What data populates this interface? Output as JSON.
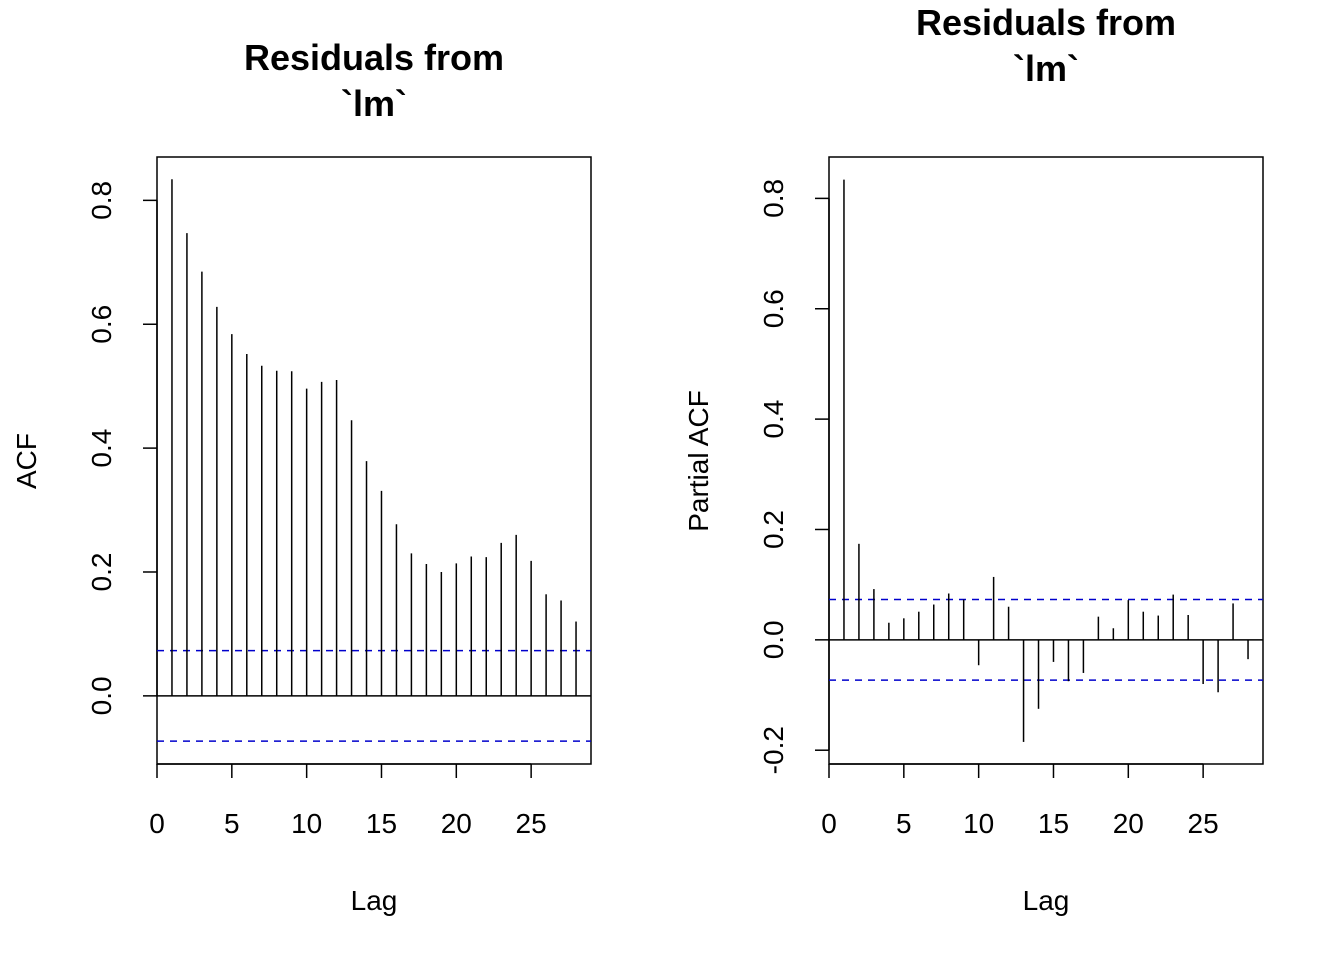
{
  "chart_data": [
    {
      "type": "bar",
      "title_lines": [
        "Residuals from",
        "`lm`"
      ],
      "xlabel": "Lag",
      "ylabel": "ACF",
      "xlim": [
        0,
        29
      ],
      "ylim": [
        -0.11,
        0.87
      ],
      "xticks": [
        "0",
        "5",
        "10",
        "15",
        "20",
        "25"
      ],
      "yticks": [
        "0.0",
        "0.2",
        "0.4",
        "0.6",
        "0.8"
      ],
      "confidence_band": 0.073,
      "band_color": "#0000cc",
      "bar_color": "#000000",
      "lags": [
        1,
        2,
        3,
        4,
        5,
        6,
        7,
        8,
        9,
        10,
        11,
        12,
        13,
        14,
        15,
        16,
        17,
        18,
        19,
        20,
        21,
        22,
        23,
        24,
        25,
        26,
        27,
        28
      ],
      "values": [
        0.834,
        0.747,
        0.685,
        0.628,
        0.584,
        0.552,
        0.533,
        0.525,
        0.524,
        0.496,
        0.507,
        0.51,
        0.445,
        0.379,
        0.331,
        0.277,
        0.23,
        0.213,
        0.2,
        0.214,
        0.225,
        0.224,
        0.247,
        0.26,
        0.218,
        0.164,
        0.154,
        0.12
      ]
    },
    {
      "type": "bar",
      "title_lines": [
        "Residuals from",
        "`lm`"
      ],
      "xlabel": "Lag",
      "ylabel": "Partial ACF",
      "xlim": [
        0,
        29
      ],
      "ylim": [
        -0.225,
        0.875
      ],
      "xticks": [
        "0",
        "5",
        "10",
        "15",
        "20",
        "25"
      ],
      "yticks": [
        "-0.2",
        "0.0",
        "0.2",
        "0.4",
        "0.6",
        "0.8"
      ],
      "confidence_band": 0.073,
      "band_color": "#0000cc",
      "bar_color": "#000000",
      "lags": [
        1,
        2,
        3,
        4,
        5,
        6,
        7,
        8,
        9,
        10,
        11,
        12,
        13,
        14,
        15,
        16,
        17,
        18,
        19,
        20,
        21,
        22,
        23,
        24,
        25,
        26,
        27,
        28
      ],
      "values": [
        0.834,
        0.174,
        0.092,
        0.031,
        0.039,
        0.051,
        0.064,
        0.084,
        0.073,
        -0.046,
        0.114,
        0.06,
        -0.185,
        -0.125,
        -0.04,
        -0.075,
        -0.06,
        0.042,
        0.021,
        0.072,
        0.051,
        0.044,
        0.082,
        0.045,
        -0.08,
        -0.095,
        0.066,
        -0.035
      ]
    }
  ]
}
